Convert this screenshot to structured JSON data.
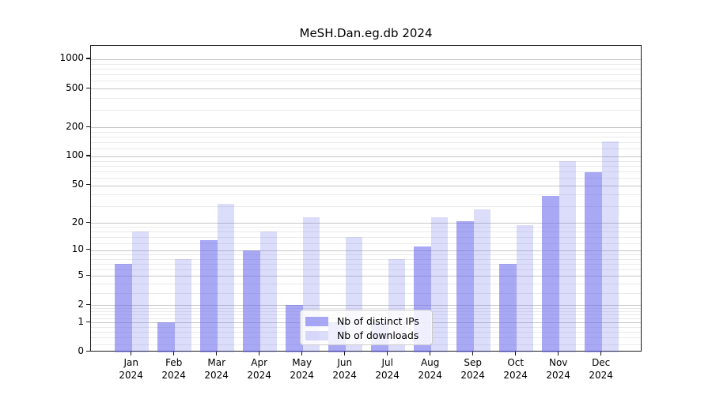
{
  "title": "MeSH.Dan.eg.db 2024",
  "chart_data": {
    "type": "bar",
    "title": "MeSH.Dan.eg.db 2024",
    "categories": [
      "Jan",
      "Feb",
      "Mar",
      "Apr",
      "May",
      "Jun",
      "Jul",
      "Aug",
      "Sep",
      "Oct",
      "Nov",
      "Dec"
    ],
    "year": "2024",
    "series": [
      {
        "name": "Nb of distinct IPs",
        "values": [
          7,
          1,
          13,
          10,
          2,
          1,
          1,
          11,
          21,
          7,
          39,
          68
        ],
        "color": "#6969ee",
        "alpha": 0.58
      },
      {
        "name": "Nb of downloads",
        "values": [
          16,
          8,
          32,
          16,
          23,
          14,
          8,
          23,
          28,
          19,
          90,
          142
        ],
        "color": "#6969ee",
        "alpha": 0.23
      }
    ],
    "yscale": "log1p",
    "yticks": [
      0,
      1,
      2,
      5,
      10,
      20,
      50,
      100,
      200,
      500,
      1000
    ],
    "minor_yticks": [
      0.2,
      0.4,
      0.6,
      0.8,
      1.2,
      1.4,
      1.6,
      1.8,
      3,
      4,
      6,
      7,
      8,
      9,
      12,
      14,
      16,
      18,
      30,
      40,
      60,
      70,
      80,
      90,
      120,
      140,
      160,
      180,
      300,
      400,
      600,
      700,
      800,
      900
    ],
    "ylim": [
      0,
      1375
    ],
    "grid": true,
    "legend_position": "lower-center",
    "xlabel": "",
    "ylabel": ""
  }
}
